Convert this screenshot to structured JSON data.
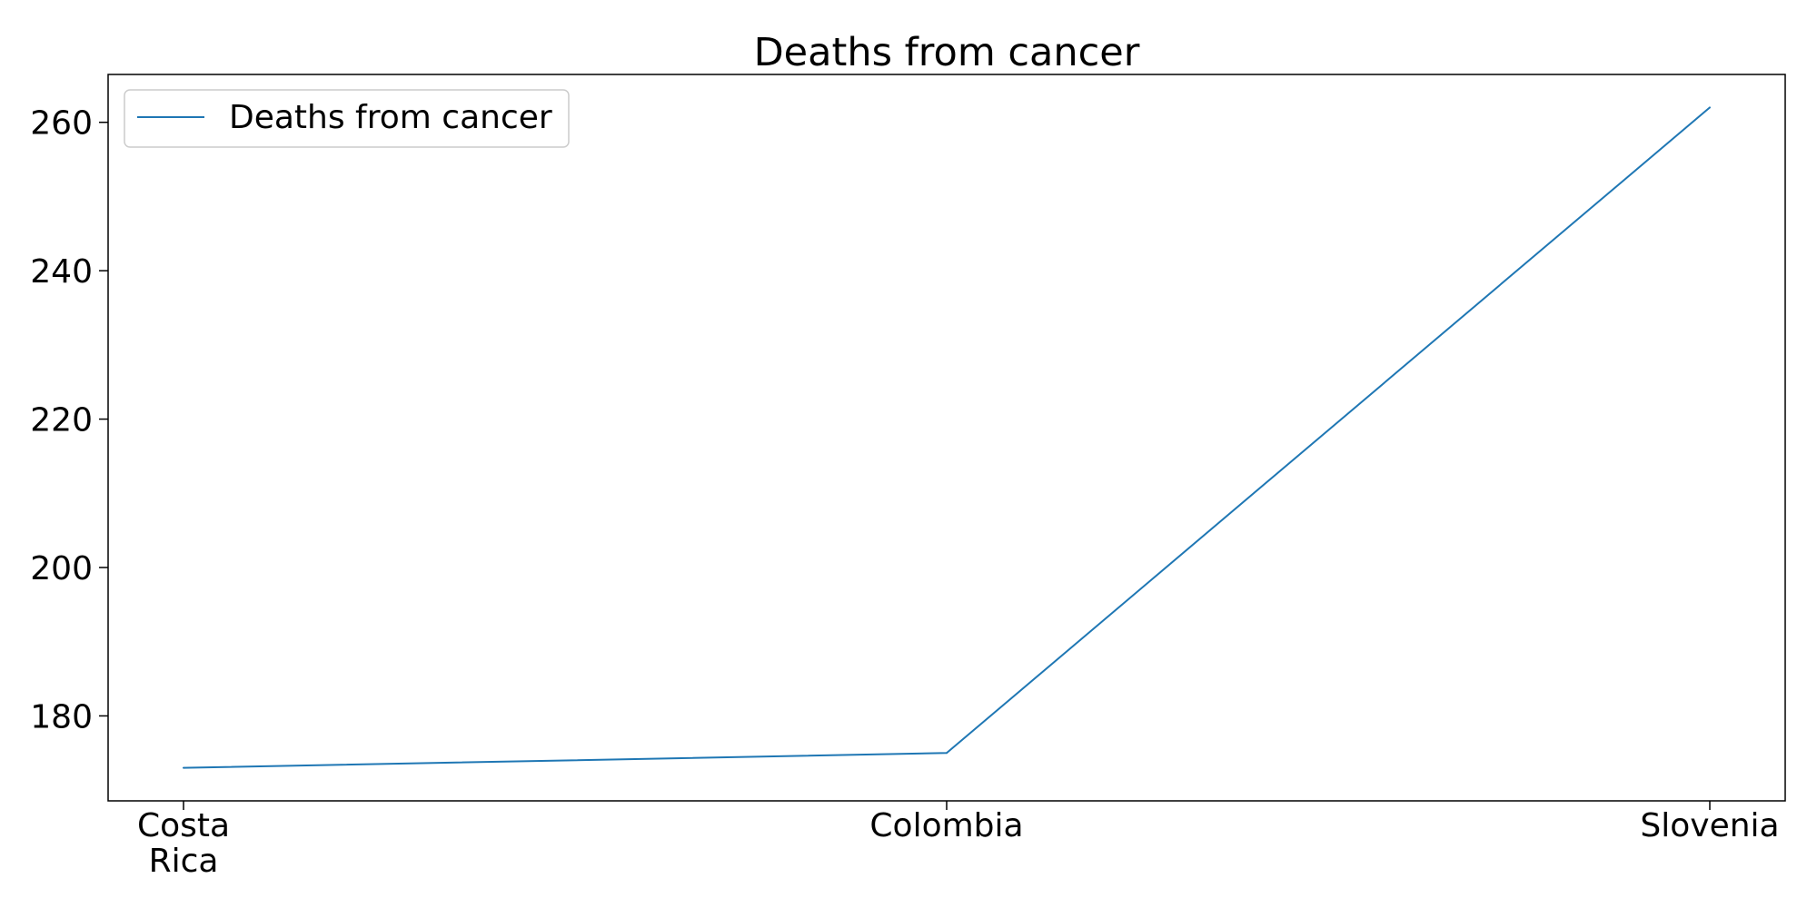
{
  "chart_data": {
    "type": "line",
    "title": "Deaths from cancer",
    "xlabel": "",
    "ylabel": "",
    "categories": [
      "Costa Rica",
      "Colombia",
      "Slovenia"
    ],
    "category_label_lines": [
      [
        "Costa",
        "Rica"
      ],
      [
        "Colombia"
      ],
      [
        "Slovenia"
      ]
    ],
    "series": [
      {
        "name": "Deaths from cancer",
        "values": [
          173,
          175,
          262
        ],
        "color": "#1f77b4"
      }
    ],
    "ylim": [
      168.55,
      266.45
    ],
    "yticks": [
      180,
      200,
      220,
      240,
      260
    ],
    "grid": false,
    "legend_position": "upper left"
  }
}
